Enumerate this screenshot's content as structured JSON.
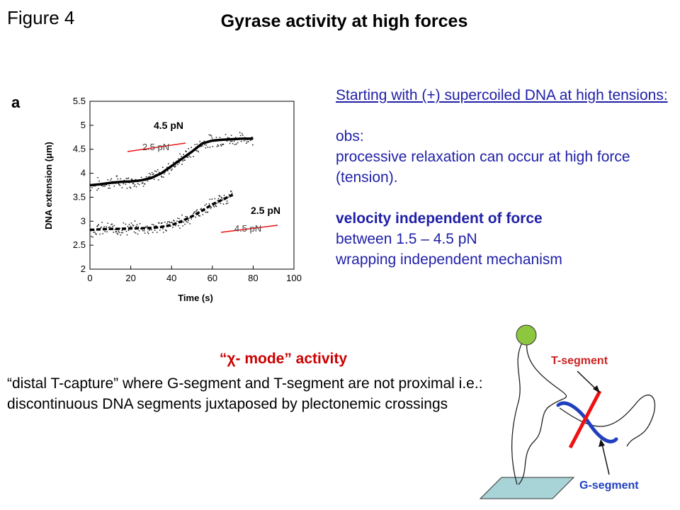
{
  "figure_label": "Figure 4",
  "title": "Gyrase activity at high forces",
  "panel_letter": "a",
  "chart_data": {
    "type": "scatter",
    "xlabel": "Time (s)",
    "ylabel": "DNA extension (μm)",
    "xlim": [
      0,
      100
    ],
    "ylim": [
      2,
      5.5
    ],
    "xticks": [
      "0",
      "20",
      "40",
      "60",
      "80",
      "100"
    ],
    "yticks": [
      "2",
      "2.5",
      "3",
      "3.5",
      "4",
      "4.5",
      "5",
      "5.5"
    ],
    "series": [
      {
        "label_inner": "2.5 pN",
        "label_outer": "4.5 pN",
        "x": [
          0,
          5,
          10,
          15,
          20,
          25,
          30,
          35,
          40,
          45,
          50,
          55,
          60,
          65,
          70,
          75,
          80
        ],
        "y": [
          3.75,
          3.77,
          3.8,
          3.82,
          3.83,
          3.85,
          3.9,
          4.0,
          4.15,
          4.3,
          4.45,
          4.62,
          4.68,
          4.7,
          4.71,
          4.72,
          4.72
        ]
      },
      {
        "label_inner": "4.5 pN",
        "label_outer": "2.5 pN",
        "x": [
          0,
          5,
          10,
          15,
          20,
          25,
          30,
          35,
          40,
          45,
          50,
          55,
          60,
          65,
          70
        ],
        "y": [
          2.82,
          2.83,
          2.84,
          2.84,
          2.85,
          2.85,
          2.86,
          2.88,
          2.92,
          3.0,
          3.1,
          3.22,
          3.35,
          3.45,
          3.55
        ]
      }
    ]
  },
  "right_text": {
    "heading": "Starting with (+) supercoiled DNA at high tensions:",
    "obs_label": "obs:",
    "obs_line": "processive relaxation can occur at high force (tension).",
    "bold_line": "velocity independent of force",
    "line2": "between 1.5 – 4.5 pN",
    "line3": "wrapping independent mechanism"
  },
  "mode": {
    "title": "“χ- mode” activity",
    "body_line1": "“distal T-capture” where G-segment and T-segment are not proximal i.e.:",
    "body_line2": "discontinuous DNA segments juxtaposed by plectonemic crossings"
  },
  "diagram": {
    "t_label": "T-segment",
    "g_label": "G-segment",
    "bead_color": "#8dc63f",
    "t_color": "#ee1111",
    "g_color": "#1f3fbf",
    "surface_color": "#a8d4d8"
  }
}
